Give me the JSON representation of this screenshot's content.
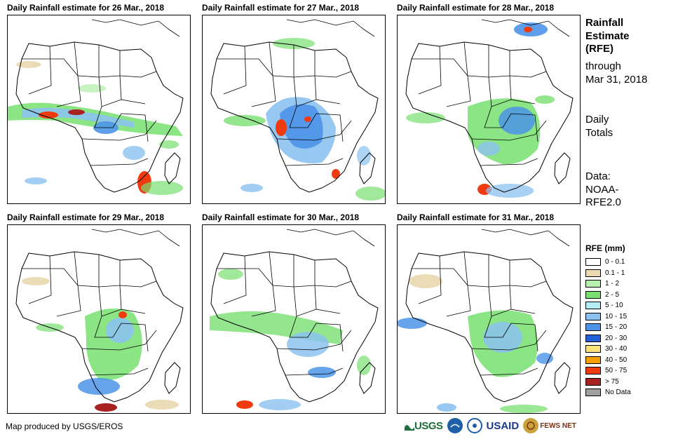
{
  "panels": [
    {
      "title": "Daily Rainfall estimate for 26 Mar., 2018",
      "date": "26 Mar."
    },
    {
      "title": "Daily Rainfall estimate for 27 Mar., 2018",
      "date": "27 Mar."
    },
    {
      "title": "Daily Rainfall estimate for 28 Mar., 2018",
      "date": "28 Mar."
    },
    {
      "title": "Daily Rainfall estimate for 29 Mar., 2018",
      "date": "29 Mar."
    },
    {
      "title": "Daily Rainfall estimate for 30 Mar., 2018",
      "date": "30 Mar."
    },
    {
      "title": "Daily Rainfall estimate for 31 Mar., 2018",
      "date": "31 Mar."
    }
  ],
  "side": {
    "title_line1": "Rainfall",
    "title_line2": "Estimate",
    "title_line3": "(RFE)",
    "through": "through",
    "through_date": "Mar 31, 2018",
    "daily_line1": "Daily",
    "daily_line2": "Totals",
    "data_line1": "Data:",
    "data_line2": "NOAA-",
    "data_line3": "RFE2.0"
  },
  "legend": {
    "title": "RFE (mm)",
    "items": [
      {
        "label": "0 - 0.1",
        "color": "#ffffff"
      },
      {
        "label": "0.1 - 1",
        "color": "#e9d8b0"
      },
      {
        "label": "1 - 2",
        "color": "#b8f0b0"
      },
      {
        "label": "2 - 5",
        "color": "#78e070"
      },
      {
        "label": "5 - 10",
        "color": "#b4ecf4"
      },
      {
        "label": "10 - 15",
        "color": "#8cc2f0"
      },
      {
        "label": "15 - 20",
        "color": "#4c94e8"
      },
      {
        "label": "20 - 30",
        "color": "#2260d8"
      },
      {
        "label": "30 - 40",
        "color": "#fce27a"
      },
      {
        "label": "40 - 50",
        "color": "#f7a000"
      },
      {
        "label": "50 - 75",
        "color": "#f03a10"
      },
      {
        "label": "> 75",
        "color": "#a82222"
      },
      {
        "label": "No Data",
        "color": "#a0a0a0"
      }
    ]
  },
  "footer": {
    "credit": "Map produced by USGS/EROS",
    "logo_usgs": "USGS",
    "logo_usaid": "USAID",
    "logo_fews": "FEWS NET"
  },
  "colors": {
    "land_outline": "#000000",
    "usgs_green": "#1f6d3a",
    "usaid_blue": "#1b3a8a",
    "noaa_blue": "#1f5fa8",
    "fews_brown": "#7a2e12"
  }
}
